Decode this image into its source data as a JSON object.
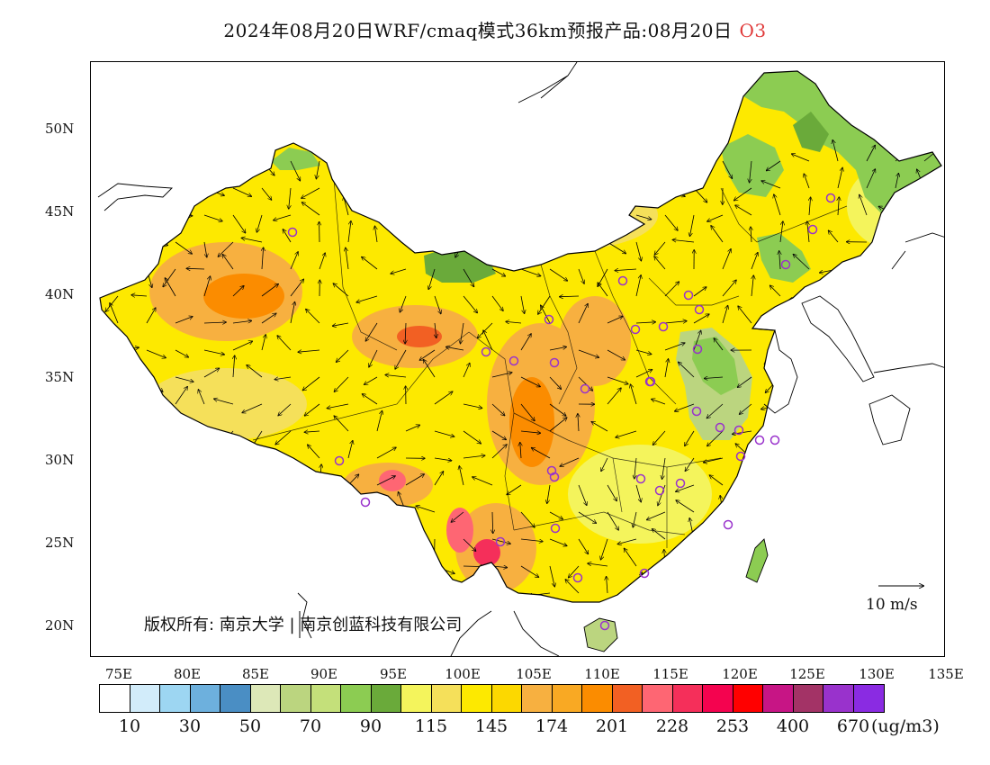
{
  "title": {
    "main": "2024年08月20日WRF/cmaq模式36km预报产品:08月20日",
    "species": "O3",
    "species_color": "#e03a3a"
  },
  "map": {
    "lon_ticks": [
      "75E",
      "80E",
      "85E",
      "90E",
      "95E",
      "100E",
      "105E",
      "110E",
      "115E",
      "120E",
      "125E",
      "130E",
      "135E"
    ],
    "lat_ticks": [
      "50N",
      "45N",
      "40N",
      "35N",
      "30N",
      "25N",
      "20N"
    ],
    "copyright": "版权所有: 南京大学 | 南京创蓝科技有限公司",
    "wind_scale_label": "10 m/s",
    "dominant_color": "#fde900"
  },
  "colorbar": {
    "colors": [
      "#ffffff",
      "#d2ecfa",
      "#9dd6f2",
      "#6db0dd",
      "#4a8ec4",
      "#dde8b8",
      "#bbd57f",
      "#c4e07a",
      "#8ccc52",
      "#6aaa3a",
      "#f4f45c",
      "#f5e05a",
      "#fde900",
      "#fcd800",
      "#f7b040",
      "#f9a923",
      "#fb8c00",
      "#f26023",
      "#fe6673",
      "#f52f5a",
      "#f4034f",
      "#ff0000",
      "#c71585",
      "#a33366",
      "#9932cc",
      "#8a2be2"
    ],
    "labels": [
      "10",
      "30",
      "50",
      "70",
      "90",
      "115",
      "145",
      "174",
      "201",
      "228",
      "253",
      "400",
      "670"
    ],
    "unit": "(ug/m3)"
  }
}
